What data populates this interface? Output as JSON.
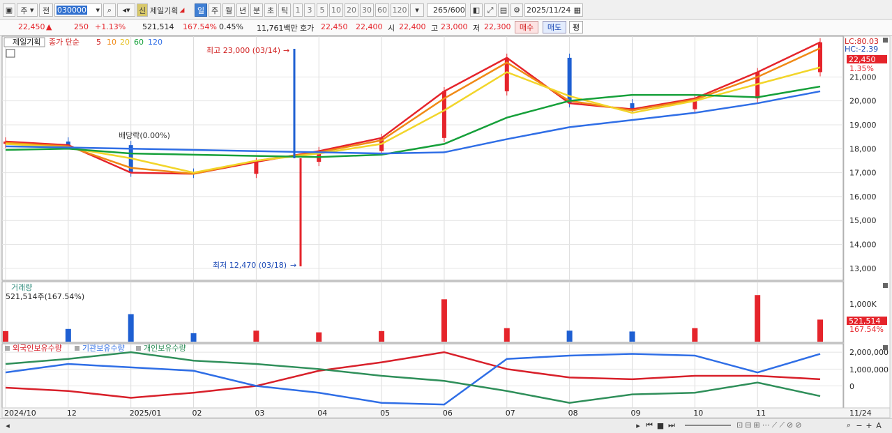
{
  "toolbar": {
    "period_select": "주",
    "prev_label": "전",
    "stock_code": "030000",
    "stock_name": "제일기획",
    "credit_badge": "신",
    "period_tabs": [
      "일",
      "주",
      "월",
      "년",
      "분",
      "초",
      "틱"
    ],
    "active_period": "일",
    "minute_buttons": [
      "1",
      "3",
      "5",
      "10",
      "20",
      "30",
      "60",
      "120"
    ],
    "count_value": "265",
    "count_total": "/600",
    "date_value": "2025/11/24"
  },
  "quote": {
    "price": "22,450",
    "change_arrow": "▲",
    "change": "250",
    "change_pct": "+1.13%",
    "volume": "521,514",
    "volume_ratio": "167.54%",
    "turnover": "0.45%",
    "amount": "11,761백만",
    "ask_label": "호가",
    "ask_value": "22,450",
    "bid_value": "22,400",
    "open_label": "시",
    "open_value": "22,400",
    "high_label": "고",
    "high_value": "23,000",
    "low_label": "저",
    "low_value": "22,300",
    "buy_label": "매수",
    "sell_label": "매도",
    "avg_label": "평"
  },
  "price_panel": {
    "stock_label": "제일기획",
    "ma_label": "종가 단순",
    "ma_periods": [
      "5",
      "10",
      "20",
      "60",
      "120"
    ],
    "lc_label": "LC:80.03",
    "hc_label": "HC:-2.39",
    "last_price_tag": "22,450",
    "last_pct_tag": "1.35%",
    "high_annotation": "최고 23,000 (03/14)",
    "low_annotation": "최저 12,470 (03/18)",
    "event_annotation": "배당락(0.00%)",
    "y_ticks": [
      "13,000",
      "14,000",
      "15,000",
      "16,000",
      "17,000",
      "18,000",
      "19,000",
      "20,000",
      "21,000"
    ]
  },
  "volume_panel": {
    "title": "거래량",
    "subtitle": "521,514주(167.54%)",
    "y_tick": "1,000K",
    "last_tag": "521,514",
    "last_pct_tag": "167.54%"
  },
  "holding_panel": {
    "legend": [
      "외국인보유수량",
      "기관보유수량",
      "개인보유수량"
    ],
    "y_ticks": [
      "2,000,000",
      "1,000,000",
      "0"
    ]
  },
  "x_axis": [
    "2024/10",
    "12",
    "2025/01",
    "02",
    "03",
    "04",
    "05",
    "06",
    "07",
    "08",
    "09",
    "10",
    "11",
    "11/24"
  ],
  "colors": {
    "up": "#e5242b",
    "down": "#1e5fd2",
    "ma5": "#e5242b",
    "ma10": "#f08a16",
    "ma20": "#f2d52a",
    "ma60": "#16a03a",
    "ma120": "#2f6ee6",
    "foreign": "#d8202a",
    "institution": "#2f6ee6",
    "individual": "#2f8f5a"
  },
  "chart_data": [
    {
      "type": "line",
      "name": "price",
      "x": [
        "2024/10",
        "12",
        "2025/01",
        "02",
        "03",
        "04",
        "05",
        "06",
        "07",
        "08",
        "09",
        "10",
        "11",
        "11/24"
      ],
      "series": [
        {
          "name": "5",
          "values": [
            18300,
            18150,
            17000,
            16950,
            17450,
            17900,
            18450,
            20400,
            21800,
            19900,
            19650,
            20100,
            21200,
            22450
          ]
        },
        {
          "name": "10",
          "values": [
            18250,
            18100,
            17200,
            16950,
            17500,
            17850,
            18350,
            20100,
            21600,
            20000,
            19600,
            20050,
            21000,
            22200
          ]
        },
        {
          "name": "20",
          "values": [
            18200,
            18050,
            17600,
            17000,
            17500,
            17800,
            18200,
            19600,
            21200,
            20200,
            19500,
            20000,
            20700,
            21400
          ]
        },
        {
          "name": "60",
          "values": [
            17950,
            18000,
            17800,
            17750,
            17700,
            17650,
            17750,
            18200,
            19300,
            20000,
            20250,
            20250,
            20150,
            20600
          ]
        },
        {
          "name": "120",
          "values": [
            18100,
            18050,
            18000,
            17950,
            17900,
            17850,
            17800,
            17850,
            18400,
            18900,
            19200,
            19500,
            19900,
            20400
          ]
        }
      ],
      "ylim": [
        12500,
        22700
      ]
    },
    {
      "type": "bar",
      "name": "volume",
      "categories": [
        "2024/10",
        "12",
        "2025/01",
        "02",
        "03",
        "04",
        "05",
        "06",
        "07",
        "08",
        "09",
        "10",
        "11",
        "11/24"
      ],
      "values": [
        250,
        300,
        650,
        200,
        260,
        220,
        250,
        1000,
        320,
        260,
        240,
        320,
        1100,
        521
      ],
      "ylim": [
        0,
        1400
      ]
    },
    {
      "type": "line",
      "name": "holdings",
      "x": [
        "2024/10",
        "12",
        "2025/01",
        "02",
        "03",
        "04",
        "05",
        "06",
        "07",
        "08",
        "09",
        "10",
        "11",
        "11/24"
      ],
      "series": [
        {
          "name": "외국인보유수량",
          "values": [
            -100000,
            -300000,
            -700000,
            -400000,
            0,
            900000,
            1400000,
            2000000,
            1000000,
            500000,
            400000,
            600000,
            600000,
            400000
          ]
        },
        {
          "name": "기관보유수량",
          "values": [
            800000,
            1300000,
            1100000,
            900000,
            0,
            -400000,
            -1000000,
            -1100000,
            1600000,
            1800000,
            1900000,
            1800000,
            800000,
            1900000
          ]
        },
        {
          "name": "개인보유수량",
          "values": [
            1300000,
            1600000,
            2000000,
            1500000,
            1300000,
            1000000,
            600000,
            300000,
            -300000,
            -1000000,
            -500000,
            -400000,
            200000,
            -600000
          ]
        }
      ],
      "ylim": [
        -1300000,
        2500000
      ]
    }
  ]
}
